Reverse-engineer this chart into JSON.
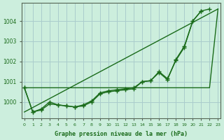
{
  "xlabel": "Graphe pression niveau de la mer (hPa)",
  "background_color": "#cceedd",
  "grid_color": "#aacccc",
  "line_color": "#1a6b1a",
  "x_ticks": [
    0,
    1,
    2,
    3,
    4,
    5,
    6,
    7,
    8,
    9,
    10,
    11,
    12,
    13,
    14,
    15,
    16,
    17,
    18,
    19,
    20,
    21,
    22,
    23
  ],
  "ylim": [
    999.2,
    1004.9
  ],
  "xlim": [
    -0.3,
    23.3
  ],
  "yticks": [
    1000,
    1001,
    1002,
    1003,
    1004
  ],
  "series": [
    {
      "x": [
        0,
        1,
        2,
        3,
        4,
        5,
        6,
        7,
        8,
        9,
        10,
        11,
        12,
        13,
        14,
        15,
        16,
        17,
        18,
        19,
        20,
        21,
        22,
        23
      ],
      "y": [
        1000.7,
        1000.7,
        1000.7,
        1000.7,
        1000.7,
        1000.7,
        1000.7,
        1000.7,
        1000.7,
        1000.7,
        1000.7,
        1000.7,
        1000.7,
        1000.7,
        1000.7,
        1000.7,
        1000.7,
        1000.7,
        1000.7,
        1000.7,
        1000.7,
        1000.7,
        1000.7,
        1004.6
      ],
      "marker": null,
      "lw": 1.0,
      "ls": "-",
      "ms": 0
    },
    {
      "x": [
        0,
        23
      ],
      "y": [
        999.5,
        1004.6
      ],
      "marker": null,
      "lw": 1.0,
      "ls": "-",
      "ms": 0
    },
    {
      "x": [
        0,
        1,
        2,
        3,
        4,
        5,
        6,
        7,
        8,
        9,
        10,
        11,
        12,
        13,
        14,
        15,
        16,
        17,
        18,
        19,
        20,
        21,
        22,
        23
      ],
      "y": [
        1000.7,
        999.5,
        999.6,
        999.9,
        999.85,
        999.8,
        999.75,
        999.85,
        1000.05,
        1000.45,
        1000.55,
        1000.6,
        1000.65,
        1000.7,
        1001.0,
        1001.05,
        1001.45,
        1001.1,
        1002.1,
        1002.75,
        1004.0,
        1004.5,
        null,
        null
      ],
      "marker": "+",
      "lw": 1.0,
      "ls": "-",
      "ms": 4
    },
    {
      "x": [
        0,
        1,
        2,
        3,
        4,
        5,
        6,
        7,
        8,
        9,
        10,
        11,
        12,
        13,
        14,
        15,
        16,
        17,
        18,
        19,
        20,
        21,
        22,
        23
      ],
      "y": [
        1000.7,
        999.5,
        999.65,
        1000.0,
        999.85,
        999.8,
        999.75,
        999.8,
        1000.0,
        1000.4,
        1000.5,
        1000.55,
        1000.6,
        1000.65,
        1001.0,
        1001.05,
        1001.5,
        1001.15,
        1002.05,
        1002.7,
        1004.0,
        1004.5,
        1004.6,
        null
      ],
      "marker": "+",
      "lw": 1.0,
      "ls": "-",
      "ms": 4
    }
  ]
}
